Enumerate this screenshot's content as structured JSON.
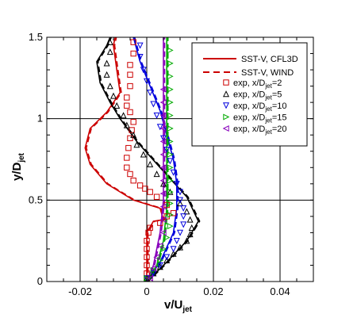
{
  "chart_data": {
    "type": "line",
    "xlabel": {
      "base": "v/U",
      "sub": "jet"
    },
    "ylabel": {
      "base": "y/D",
      "sub": "jet"
    },
    "xlim": [
      -0.03,
      0.05
    ],
    "ylim": [
      0,
      1.5
    ],
    "xticks": [
      -0.02,
      0,
      0.02,
      0.04
    ],
    "yticks": [
      0,
      0.5,
      1,
      1.5
    ],
    "xtick_labels": [
      "-0.02",
      "0",
      "0.02",
      "0.04"
    ],
    "ytick_labels": [
      "0",
      "0.5",
      "1",
      "1.5"
    ],
    "grid": true,
    "legend_position": "top-right",
    "legend": [
      {
        "label": "SST-V, CFL3D",
        "kind": "line",
        "dash": false,
        "color": "#cc0000"
      },
      {
        "label": "SST-V, WIND",
        "kind": "line",
        "dash": true,
        "color": "#cc0000"
      },
      {
        "label": "exp, x/D",
        "sub": "jet",
        "suffix": "=2",
        "kind": "marker",
        "marker": "square",
        "color": "#cc0000"
      },
      {
        "label": "exp, x/D",
        "sub": "jet",
        "suffix": "=5",
        "kind": "marker",
        "marker": "triangle-up",
        "color": "#000000"
      },
      {
        "label": "exp, x/D",
        "sub": "jet",
        "suffix": "=10",
        "kind": "marker",
        "marker": "triangle-down",
        "color": "#0000dd"
      },
      {
        "label": "exp, x/D",
        "sub": "jet",
        "suffix": "=15",
        "kind": "marker",
        "marker": "triangle-right",
        "color": "#00aa00"
      },
      {
        "label": "exp, x/D",
        "sub": "jet",
        "suffix": "=20",
        "kind": "marker",
        "marker": "triangle-left",
        "color": "#8800bb"
      }
    ],
    "cfd_series": [
      {
        "station": "x/Djet=2",
        "color": "#cc0000",
        "points": [
          [
            0,
            0
          ],
          [
            0,
            0.3
          ],
          [
            0.002,
            0.37
          ],
          [
            0.005,
            0.38
          ],
          [
            0.004,
            0.45
          ],
          [
            -0.004,
            0.5
          ],
          [
            -0.012,
            0.6
          ],
          [
            -0.017,
            0.72
          ],
          [
            -0.0185,
            0.82
          ],
          [
            -0.017,
            0.94
          ],
          [
            -0.012,
            1.04
          ],
          [
            -0.008,
            1.16
          ],
          [
            -0.009,
            1.3
          ],
          [
            -0.01,
            1.45
          ],
          [
            -0.0095,
            1.5
          ]
        ]
      },
      {
        "station": "x/Djet=5",
        "color": "#000000",
        "points": [
          [
            0,
            0
          ],
          [
            0.006,
            0.12
          ],
          [
            0.012,
            0.25
          ],
          [
            0.0155,
            0.37
          ],
          [
            0.012,
            0.52
          ],
          [
            0.004,
            0.7
          ],
          [
            -0.003,
            0.86
          ],
          [
            -0.008,
            1.0
          ],
          [
            -0.011,
            1.1
          ],
          [
            -0.014,
            1.22
          ],
          [
            -0.015,
            1.35
          ],
          [
            -0.012,
            1.45
          ],
          [
            -0.011,
            1.5
          ]
        ]
      },
      {
        "station": "x/Djet=10",
        "color": "#0000dd",
        "points": [
          [
            0,
            0
          ],
          [
            0.004,
            0.12
          ],
          [
            0.008,
            0.3
          ],
          [
            0.009,
            0.45
          ],
          [
            0.009,
            0.6
          ],
          [
            0.008,
            0.75
          ],
          [
            0.006,
            0.9
          ],
          [
            0.004,
            1.05
          ],
          [
            0.001,
            1.2
          ],
          [
            -0.002,
            1.35
          ],
          [
            -0.004,
            1.5
          ]
        ]
      },
      {
        "station": "x/Djet=15",
        "color": "#00aa00",
        "points": [
          [
            0,
            0
          ],
          [
            0.003,
            0.1
          ],
          [
            0.005,
            0.25
          ],
          [
            0.006,
            0.45
          ],
          [
            0.006,
            0.65
          ],
          [
            0.006,
            0.85
          ],
          [
            0.006,
            1.05
          ],
          [
            0.006,
            1.25
          ],
          [
            0.006,
            1.4
          ],
          [
            0.006,
            1.5
          ]
        ]
      },
      {
        "station": "x/Djet=20",
        "color": "#8800bb",
        "points": [
          [
            0,
            0
          ],
          [
            0.002,
            0.1
          ],
          [
            0.004,
            0.3
          ],
          [
            0.005,
            0.5
          ],
          [
            0.005,
            0.7
          ],
          [
            0.005,
            0.9
          ],
          [
            0.005,
            1.1
          ],
          [
            0.005,
            1.3
          ],
          [
            0.005,
            1.5
          ]
        ]
      }
    ],
    "exp_series": [
      {
        "station": "x/Djet=2",
        "marker": "square",
        "color": "#cc0000",
        "points": [
          [
            0,
            0.02
          ],
          [
            0,
            0.05
          ],
          [
            0,
            0.1
          ],
          [
            0,
            0.15
          ],
          [
            0,
            0.2
          ],
          [
            0,
            0.25
          ],
          [
            0.0005,
            0.3
          ],
          [
            0.001,
            0.33
          ],
          [
            0.004,
            0.36
          ],
          [
            0.006,
            0.4
          ],
          [
            0.008,
            0.42
          ],
          [
            0.006,
            0.47
          ],
          [
            0.003,
            0.52
          ],
          [
            0.001,
            0.55
          ],
          [
            -0.0005,
            0.57
          ],
          [
            -0.002,
            0.59
          ],
          [
            -0.004,
            0.62
          ],
          [
            -0.005,
            0.66
          ],
          [
            -0.006,
            0.7
          ],
          [
            -0.006,
            0.76
          ],
          [
            -0.0055,
            0.82
          ],
          [
            -0.005,
            0.88
          ],
          [
            -0.0045,
            0.93
          ],
          [
            -0.004,
            0.98
          ],
          [
            -0.005,
            1.04
          ],
          [
            -0.006,
            1.08
          ],
          [
            -0.006,
            1.13
          ],
          [
            -0.005,
            1.2
          ],
          [
            -0.005,
            1.27
          ],
          [
            -0.005,
            1.33
          ],
          [
            -0.004,
            1.4
          ],
          [
            -0.004,
            1.47
          ]
        ]
      },
      {
        "station": "x/Djet=5",
        "marker": "triangle-up",
        "color": "#000000",
        "points": [
          [
            0,
            0.02
          ],
          [
            0.002,
            0.05
          ],
          [
            0.004,
            0.09
          ],
          [
            0.006,
            0.13
          ],
          [
            0.008,
            0.17
          ],
          [
            0.01,
            0.21
          ],
          [
            0.012,
            0.25
          ],
          [
            0.013,
            0.29
          ],
          [
            0.0135,
            0.33
          ],
          [
            0.013,
            0.38
          ],
          [
            0.012,
            0.43
          ],
          [
            0.01,
            0.48
          ],
          [
            0.007,
            0.55
          ],
          [
            0.005,
            0.6
          ],
          [
            0.003,
            0.66
          ],
          [
            0.001,
            0.72
          ],
          [
            -0.001,
            0.78
          ],
          [
            -0.003,
            0.84
          ],
          [
            -0.004,
            0.9
          ],
          [
            -0.006,
            0.96
          ],
          [
            -0.007,
            1.02
          ],
          [
            -0.009,
            1.08
          ],
          [
            -0.01,
            1.14
          ],
          [
            -0.011,
            1.2
          ],
          [
            -0.012,
            1.27
          ],
          [
            -0.012,
            1.34
          ],
          [
            -0.011,
            1.41
          ],
          [
            -0.011,
            1.47
          ]
        ]
      },
      {
        "station": "x/Djet=10",
        "marker": "triangle-down",
        "color": "#0000dd",
        "points": [
          [
            0,
            0.02
          ],
          [
            0.002,
            0.05
          ],
          [
            0.004,
            0.1
          ],
          [
            0.006,
            0.15
          ],
          [
            0.008,
            0.2
          ],
          [
            0.009,
            0.25
          ],
          [
            0.01,
            0.3
          ],
          [
            0.011,
            0.35
          ],
          [
            0.011,
            0.4
          ],
          [
            0.011,
            0.45
          ],
          [
            0.01,
            0.5
          ],
          [
            0.01,
            0.55
          ],
          [
            0.009,
            0.6
          ],
          [
            0.008,
            0.67
          ],
          [
            0.007,
            0.74
          ],
          [
            0.006,
            0.81
          ],
          [
            0.005,
            0.88
          ],
          [
            0.004,
            0.95
          ],
          [
            0.003,
            1.02
          ],
          [
            0.002,
            1.09
          ],
          [
            0.001,
            1.16
          ],
          [
            0,
            1.23
          ],
          [
            -0.001,
            1.3
          ],
          [
            -0.002,
            1.38
          ],
          [
            -0.002,
            1.45
          ]
        ]
      },
      {
        "station": "x/Djet=15",
        "marker": "triangle-right",
        "color": "#00aa00",
        "points": [
          [
            0,
            0.02
          ],
          [
            0.002,
            0.07
          ],
          [
            0.004,
            0.13
          ],
          [
            0.005,
            0.2
          ],
          [
            0.006,
            0.27
          ],
          [
            0.007,
            0.34
          ],
          [
            0.007,
            0.41
          ],
          [
            0.007,
            0.48
          ],
          [
            0.007,
            0.55
          ],
          [
            0.007,
            0.62
          ],
          [
            0.007,
            0.7
          ],
          [
            0.007,
            0.78
          ],
          [
            0.007,
            0.86
          ],
          [
            0.007,
            0.94
          ],
          [
            0.007,
            1.02
          ],
          [
            0.007,
            1.1
          ],
          [
            0.007,
            1.18
          ],
          [
            0.007,
            1.26
          ],
          [
            0.007,
            1.34
          ],
          [
            0.007,
            1.42
          ]
        ]
      },
      {
        "station": "x/Djet=20",
        "marker": "triangle-left",
        "color": "#8800bb",
        "points": [
          [
            0.001,
            0.02
          ],
          [
            0.002,
            0.08
          ],
          [
            0.003,
            0.15
          ],
          [
            0.004,
            0.22
          ],
          [
            0.005,
            0.3
          ],
          [
            0.005,
            0.38
          ],
          [
            0.005,
            0.46
          ],
          [
            0.005,
            0.54
          ],
          [
            0.005,
            0.62
          ],
          [
            0.005,
            0.7
          ],
          [
            0.005,
            0.78
          ],
          [
            0.005,
            0.86
          ],
          [
            0.005,
            0.94
          ],
          [
            0.005,
            1.02
          ],
          [
            0.005,
            1.1
          ],
          [
            0.005,
            1.18
          ]
        ]
      }
    ]
  }
}
